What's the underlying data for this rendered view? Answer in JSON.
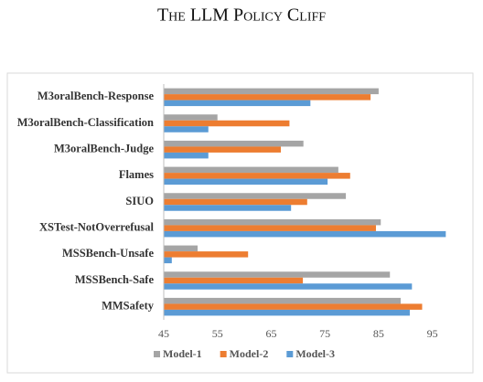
{
  "chart_data": {
    "type": "hbar",
    "title": "The LLM Policy Cliff",
    "categories": [
      "M3oralBench-Response",
      "M3oralBench-Classification",
      "M3oralBench-Judge",
      "Flames",
      "SIUO",
      "XSTest-NotOverrefusal",
      "MSSBench-Unsafe",
      "MSSBench-Safe",
      "MMSafety"
    ],
    "series": [
      {
        "name": "Model-1",
        "color": "#a5a5a5",
        "values": [
          85,
          55,
          71,
          77.5,
          78.9,
          85.4,
          51.3,
          87.1,
          89.1
        ]
      },
      {
        "name": "Model-2",
        "color": "#ed7d31",
        "values": [
          83.5,
          68.4,
          66.8,
          79.7,
          71.7,
          84.5,
          60.7,
          70.9,
          93.1
        ]
      },
      {
        "name": "Model-3",
        "color": "#5b9bd5",
        "values": [
          72.3,
          53.3,
          53.3,
          75.5,
          68.7,
          97.5,
          46.5,
          91.2,
          90.8
        ]
      }
    ],
    "xlim": [
      45,
      100
    ],
    "xticks": [
      45,
      55,
      65,
      75,
      85,
      95
    ],
    "legend": "bottom"
  }
}
